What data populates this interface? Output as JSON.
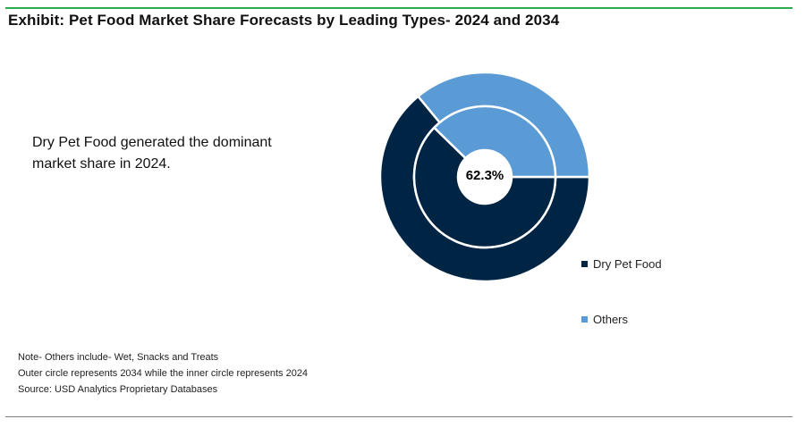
{
  "title": "Exhibit: Pet Food Market Share Forecasts by Leading Types- 2024 and 2034",
  "callout": "Dry Pet Food generated the dominant market share in 2024.",
  "notes": [
    "Note- Others include- Wet, Snacks and Treats",
    "Outer circle represents 2034 while the inner circle represents 2024",
    "Source: USD Analytics Proprietary Databases"
  ],
  "chart_data": {
    "type": "pie",
    "variant": "nested-donut",
    "center_label": "62.3%",
    "categories": [
      "Dry Pet Food",
      "Others"
    ],
    "colors": [
      "#002544",
      "#5b9bd5"
    ],
    "series": [
      {
        "ring": "inner",
        "values": [
          62.3,
          37.7
        ]
      },
      {
        "ring": "outer",
        "values": [
          64.0,
          36.0
        ]
      }
    ],
    "legend_position": "right"
  }
}
